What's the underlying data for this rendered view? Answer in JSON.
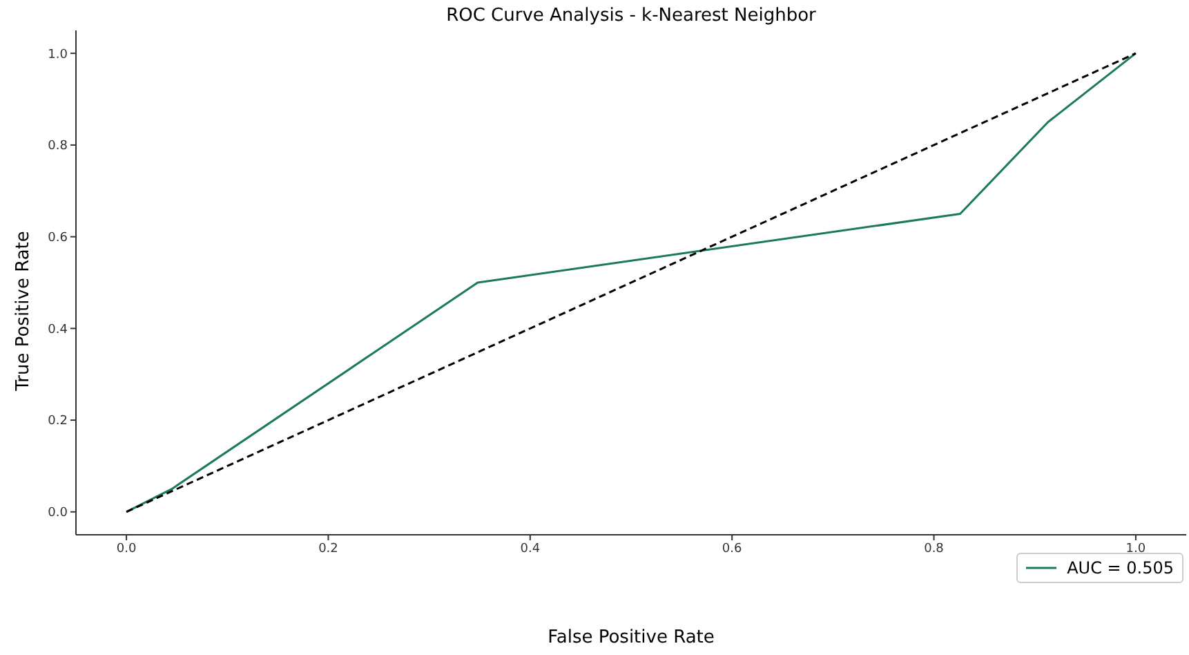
{
  "chart_data": {
    "type": "line",
    "title": "ROC Curve Analysis - k-Nearest Neighbor",
    "xlabel": "False Positive Rate",
    "ylabel": "True Positive Rate",
    "series": [
      {
        "name": "AUC = 0.505",
        "color": "#1b7a5a",
        "x": [
          0,
          0.045,
          0.348,
          0.826,
          0.913,
          1
        ],
        "values": [
          0,
          0.05,
          0.5,
          0.65,
          0.85,
          1
        ]
      },
      {
        "color": "#000000",
        "line_style": "dashed",
        "x": [
          0,
          1
        ],
        "values": [
          0,
          1
        ]
      }
    ],
    "xlim": [
      -0.05,
      1.05
    ],
    "ylim": [
      -0.05,
      1.05
    ],
    "xticks": [
      {
        "value": 0,
        "label": "0.0"
      },
      0.2,
      0.4,
      0.6,
      0.8,
      {
        "value": 1,
        "label": "1.0"
      }
    ],
    "yticks": [
      {
        "value": 0,
        "label": "0.0"
      },
      0.2,
      0.4,
      0.6,
      0.8,
      {
        "value": 1,
        "label": "1.0"
      }
    ],
    "legend": "bottom right",
    "grid": false
  }
}
